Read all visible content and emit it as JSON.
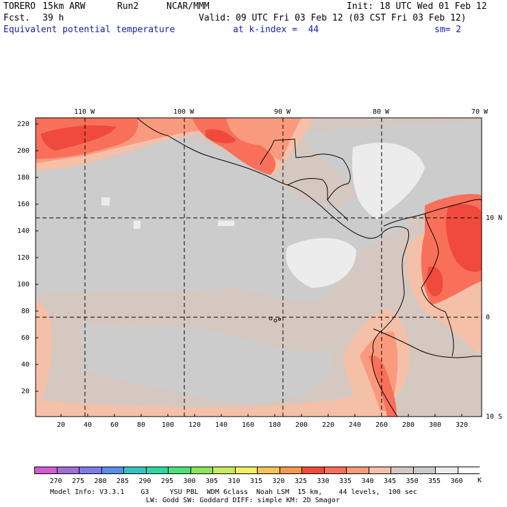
{
  "header": {
    "model": "TORERO",
    "resolution": "15km ARW",
    "run": "Run2",
    "org": "NCAR/MMM",
    "init_label": "Init:",
    "init_value": "18 UTC Wed 01 Feb 12",
    "fcst_label": "Fcst.",
    "fcst_value": "39 h",
    "valid_label": "Valid:",
    "valid_value": "09 UTC Fri 03 Feb 12 (03 CST Fri 03 Feb 12)",
    "field": "Equivalent potential temperature",
    "level": "at k-index =  44",
    "smooth": "sm= 2"
  },
  "map": {
    "top_lon_labels": [
      "110 W",
      "100 W",
      "90 W",
      "80 W",
      "70 W"
    ],
    "right_lat_labels": [
      "10 N",
      "0",
      "10 S"
    ],
    "left_ticks": [
      "220",
      "200",
      "180",
      "160",
      "140",
      "120",
      "100",
      "80",
      "60",
      "40",
      "20"
    ],
    "bottom_ticks": [
      "20",
      "40",
      "60",
      "80",
      "100",
      "120",
      "140",
      "160",
      "180",
      "200",
      "220",
      "240",
      "260",
      "280",
      "300",
      "320"
    ],
    "colors": {
      "c325": "#f04a3c",
      "c330": "#f8705a",
      "c335": "#f99a7e",
      "c340": "#f5c0a8",
      "c345": "#d5c8c0",
      "c350": "#cccccc",
      "c355": "#ececec",
      "land_line": "#000000"
    }
  },
  "colorbar": {
    "labels": [
      "270",
      "275",
      "280",
      "285",
      "290",
      "295",
      "300",
      "305",
      "310",
      "315",
      "320",
      "325",
      "330",
      "335",
      "340",
      "345",
      "350",
      "355",
      "360"
    ],
    "unit": "K",
    "colors": [
      "#d25bd2",
      "#a06fd6",
      "#7f7be6",
      "#5a8ee8",
      "#38c1c4",
      "#2dd6a0",
      "#4ce07a",
      "#8ae55a",
      "#c6ec5c",
      "#f1ef63",
      "#f6c25a",
      "#f49a4e",
      "#f04a3c",
      "#f8705a",
      "#f99a7e",
      "#f5c0a8",
      "#d5c8c0",
      "#cccccc",
      "#ececec",
      "#ffffff"
    ]
  },
  "footer": {
    "line1": "Model Info: V3.3.1    G3     YSU PBL  WDM 6class  Noah LSM  15 km,    44 levels,  100 sec",
    "line2": "LW: Godd SW: Goddard DIFF: simple KM: 2D Smagor"
  }
}
